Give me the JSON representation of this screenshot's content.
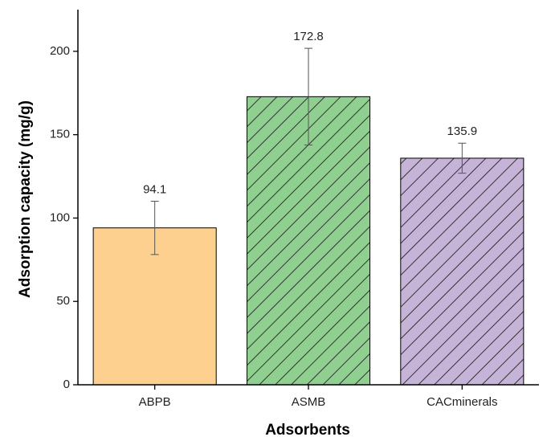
{
  "chart_data": {
    "type": "bar",
    "xlabel": "Adsorbents",
    "ylabel": "Adsorption capacity (mg/g)",
    "categories": [
      "ABPB",
      "ASMB",
      "CACminerals"
    ],
    "values": [
      94.1,
      172.8,
      135.9
    ],
    "errors": [
      16,
      29,
      9
    ],
    "colors": [
      "#fdd08f",
      "#8fcf8f",
      "#c6b3d8"
    ],
    "hatch": [
      false,
      true,
      true
    ],
    "ylim": [
      0,
      225
    ],
    "yticks": [
      0,
      50,
      100,
      150,
      200
    ]
  }
}
